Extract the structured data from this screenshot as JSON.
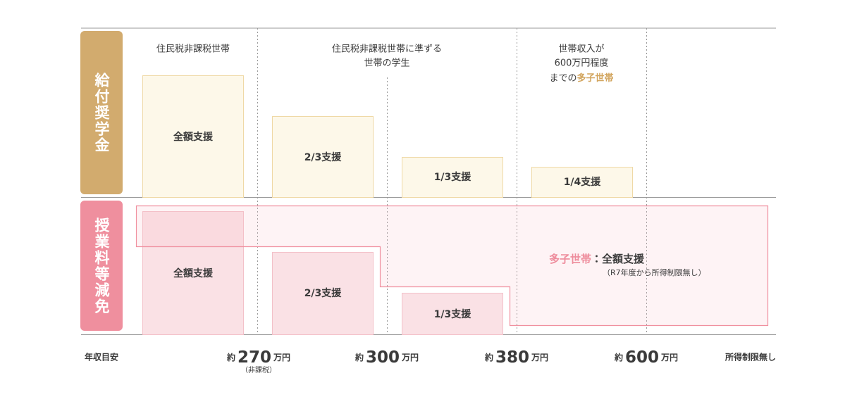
{
  "rows": [
    {
      "label": "給付奨学金"
    },
    {
      "label": "授業料等減免"
    }
  ],
  "columns": [
    {
      "lines": [
        "住民税非課税世帯"
      ]
    },
    {
      "lines": [
        "住民税非課税世帯に準ずる",
        "世帯の学生"
      ]
    },
    {
      "lines": [
        "世帯収入が",
        "600万円程度"
      ],
      "last_line": {
        "text": "までの",
        "highlight": "多子世帯"
      }
    }
  ],
  "scholarship_boxes": [
    "全額支援",
    "2/3支援",
    "1/3支援",
    "1/4支援"
  ],
  "tuition_boxes": [
    "全額支援",
    "2/3支援",
    "1/3支援"
  ],
  "multi_child": {
    "highlight": "多子世帯",
    "text": "：全額支援",
    "note": "（R7年度から所得制限無し）"
  },
  "axis": {
    "label": "年収目安",
    "marks": [
      {
        "prefix": "約",
        "amount": "270",
        "unit": "万円",
        "note": "（非課税）"
      },
      {
        "prefix": "約",
        "amount": "300",
        "unit": "万円"
      },
      {
        "prefix": "約",
        "amount": "380",
        "unit": "万円"
      },
      {
        "prefix": "約",
        "amount": "600",
        "unit": "万円"
      }
    ],
    "end": "所得制限無し"
  }
}
